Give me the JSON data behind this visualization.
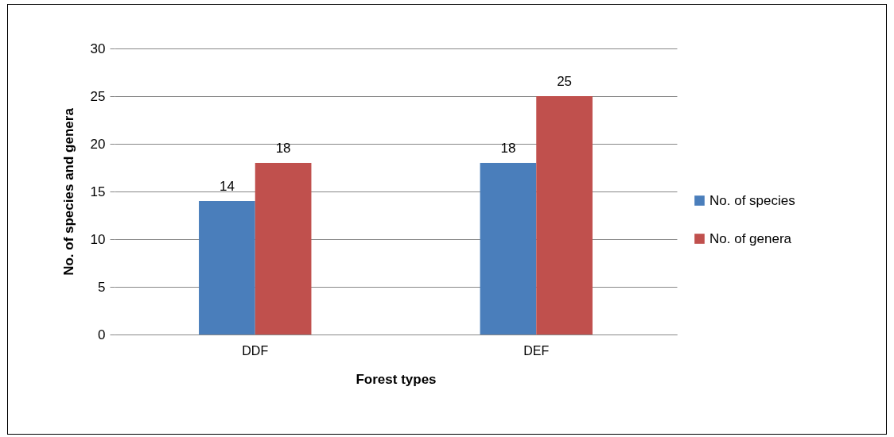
{
  "chart_data": {
    "type": "bar",
    "xlabel": "Forest types",
    "ylabel": "No. of species and genera",
    "categories": [
      "DDF",
      "DEF"
    ],
    "series": [
      {
        "name": "No. of species",
        "color": "#4a7ebb",
        "values": [
          14,
          18
        ]
      },
      {
        "name": "No. of genera",
        "color": "#c0504d",
        "values": [
          18,
          25
        ]
      }
    ],
    "ylim": [
      0,
      30
    ],
    "yticks": [
      0,
      5,
      10,
      15,
      20,
      25,
      30
    ],
    "grid": "y",
    "legend": "right",
    "data_labels": true
  }
}
